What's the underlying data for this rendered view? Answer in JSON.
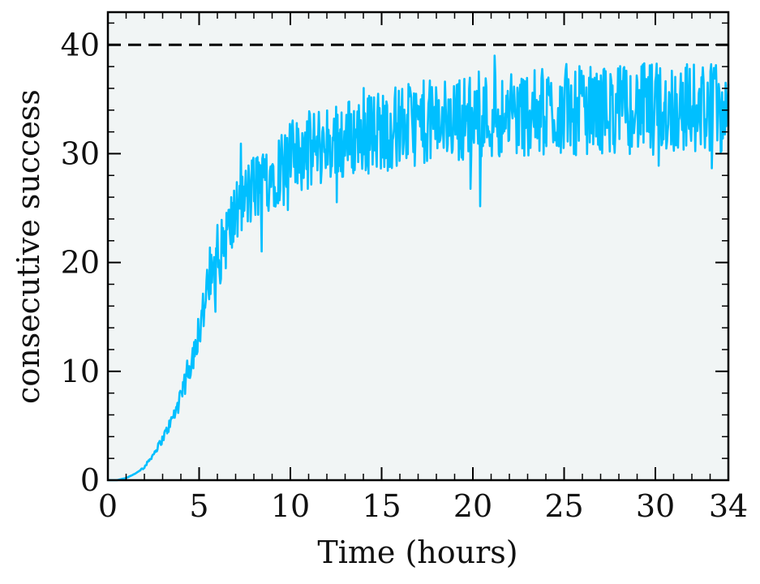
{
  "chart_data": {
    "type": "line",
    "title": "",
    "xlabel": "Time (hours)",
    "ylabel": "consecutive success",
    "xlim": [
      0,
      34
    ],
    "ylim": [
      0,
      43
    ],
    "x_ticks": [
      0,
      5,
      10,
      15,
      20,
      25,
      30,
      34
    ],
    "y_ticks": [
      0,
      10,
      20,
      30,
      40
    ],
    "grid": false,
    "legend": "none",
    "reference_line": {
      "y": 40,
      "style": "dashed",
      "color": "#000000"
    },
    "series": [
      {
        "color": "#00BFFF",
        "x": [
          0,
          0.5,
          1,
          1.5,
          2,
          2.5,
          3,
          3.5,
          4,
          4.5,
          5,
          5.5,
          6,
          6.5,
          7,
          7.5,
          8,
          8.5,
          9,
          9.5,
          10,
          11,
          12,
          13,
          14,
          15,
          16,
          17,
          18,
          19,
          20,
          21,
          22,
          23,
          24,
          25,
          26,
          27,
          28,
          29,
          30,
          31,
          32,
          33,
          34
        ],
        "y": [
          0,
          0,
          0.2,
          0.6,
          1.2,
          2.4,
          3.8,
          5.5,
          7.5,
          10.5,
          14,
          17.5,
          20,
          22.5,
          24.5,
          25.8,
          26.8,
          27.6,
          28.3,
          29,
          29.5,
          30.3,
          30.9,
          31.4,
          31.8,
          32.2,
          32.5,
          32.8,
          33,
          33.2,
          33.4,
          33.5,
          33.6,
          33.7,
          33.8,
          33.9,
          34,
          34,
          34.1,
          34.1,
          34.2,
          34.2,
          34.3,
          34.3,
          34.3
        ]
      }
    ],
    "noise_amplitude": [
      0,
      0,
      0,
      0,
      0.1,
      0.2,
      0.4,
      0.6,
      0.9,
      1.3,
      2,
      2.5,
      2.8,
      3.0,
      3.1,
      3.2,
      3.3,
      3.4,
      3.5,
      3.5,
      3.6,
      3.6,
      3.7,
      3.7,
      3.8,
      3.8,
      3.8,
      3.9,
      3.9,
      3.9,
      4.0,
      4.0,
      4.0,
      4.0,
      4.1,
      4.1,
      4.1,
      4.1,
      4.1,
      4.2,
      4.2,
      4.2,
      4.2,
      4.2,
      4.2
    ]
  }
}
